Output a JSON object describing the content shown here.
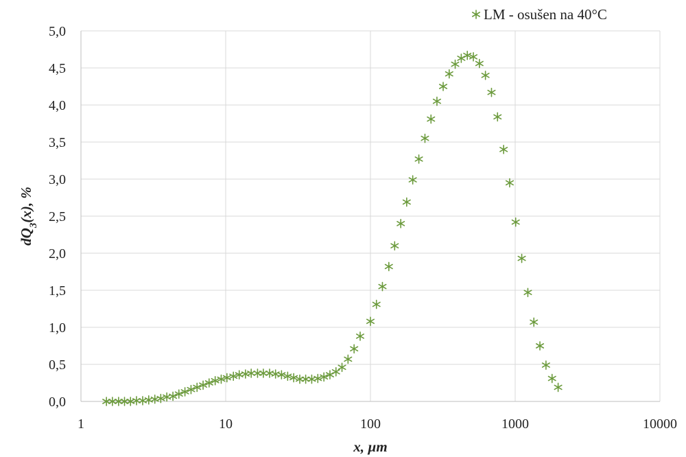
{
  "chart_data": {
    "type": "scatter",
    "x_scale": "log",
    "xlim": [
      1,
      10000
    ],
    "ylim": [
      0,
      5
    ],
    "x_ticks": [
      1,
      10,
      100,
      1000,
      10000
    ],
    "x_tick_labels": [
      "1",
      "10",
      "100",
      "1000",
      "10000"
    ],
    "y_ticks": [
      0,
      0.5,
      1,
      1.5,
      2,
      2.5,
      3,
      3.5,
      4,
      4.5,
      5
    ],
    "y_tick_labels": [
      "0,0",
      "0,5",
      "1,0",
      "1,5",
      "2,0",
      "2,5",
      "3,0",
      "3,5",
      "4,0",
      "4,5",
      "5,0"
    ],
    "xlabel": "x, µm",
    "ylabel_main": "dQ",
    "ylabel_sub": "3",
    "ylabel_rest": "(x), %",
    "grid": "vertical and horizontal",
    "legend_position": "top-right",
    "marker": "asterisk",
    "series": [
      {
        "name": "LM - osušen na 40°C",
        "color": "#6b9a3c",
        "points": [
          [
            1.5,
            0.0
          ],
          [
            1.65,
            0.0
          ],
          [
            1.82,
            0.0
          ],
          [
            2.0,
            0.0
          ],
          [
            2.2,
            0.0
          ],
          [
            2.42,
            0.01
          ],
          [
            2.67,
            0.01
          ],
          [
            2.94,
            0.02
          ],
          [
            3.24,
            0.03
          ],
          [
            3.56,
            0.04
          ],
          [
            3.92,
            0.06
          ],
          [
            4.32,
            0.07
          ],
          [
            4.75,
            0.1
          ],
          [
            5.23,
            0.13
          ],
          [
            5.76,
            0.16
          ],
          [
            6.34,
            0.19
          ],
          [
            6.98,
            0.22
          ],
          [
            7.68,
            0.25
          ],
          [
            8.46,
            0.28
          ],
          [
            9.31,
            0.3
          ],
          [
            10.2,
            0.32
          ],
          [
            11.3,
            0.34
          ],
          [
            12.4,
            0.36
          ],
          [
            13.7,
            0.37
          ],
          [
            15.0,
            0.38
          ],
          [
            16.6,
            0.38
          ],
          [
            18.2,
            0.38
          ],
          [
            20.1,
            0.38
          ],
          [
            22.1,
            0.37
          ],
          [
            24.3,
            0.36
          ],
          [
            26.8,
            0.34
          ],
          [
            29.5,
            0.32
          ],
          [
            32.5,
            0.3
          ],
          [
            35.7,
            0.3
          ],
          [
            39.3,
            0.3
          ],
          [
            43.3,
            0.31
          ],
          [
            47.7,
            0.33
          ],
          [
            52.5,
            0.36
          ],
          [
            57.8,
            0.4
          ],
          [
            63.6,
            0.46
          ],
          [
            70.0,
            0.57
          ],
          [
            77.1,
            0.71
          ],
          [
            84.9,
            0.88
          ],
          [
            100,
            1.08
          ],
          [
            110,
            1.31
          ],
          [
            121,
            1.55
          ],
          [
            134,
            1.82
          ],
          [
            147,
            2.1
          ],
          [
            162,
            2.4
          ],
          [
            178,
            2.69
          ],
          [
            196,
            2.99
          ],
          [
            216,
            3.27
          ],
          [
            238,
            3.55
          ],
          [
            262,
            3.81
          ],
          [
            288,
            4.05
          ],
          [
            318,
            4.25
          ],
          [
            350,
            4.42
          ],
          [
            385,
            4.55
          ],
          [
            424,
            4.63
          ],
          [
            467,
            4.67
          ],
          [
            514,
            4.65
          ],
          [
            566,
            4.56
          ],
          [
            623,
            4.4
          ],
          [
            686,
            4.17
          ],
          [
            755,
            3.84
          ],
          [
            832,
            3.4
          ],
          [
            916,
            2.95
          ],
          [
            1008,
            2.42
          ],
          [
            1110,
            1.93
          ],
          [
            1223,
            1.47
          ],
          [
            1346,
            1.07
          ],
          [
            1482,
            0.75
          ],
          [
            1632,
            0.49
          ],
          [
            1798,
            0.31
          ],
          [
            1980,
            0.19
          ]
        ]
      }
    ]
  }
}
